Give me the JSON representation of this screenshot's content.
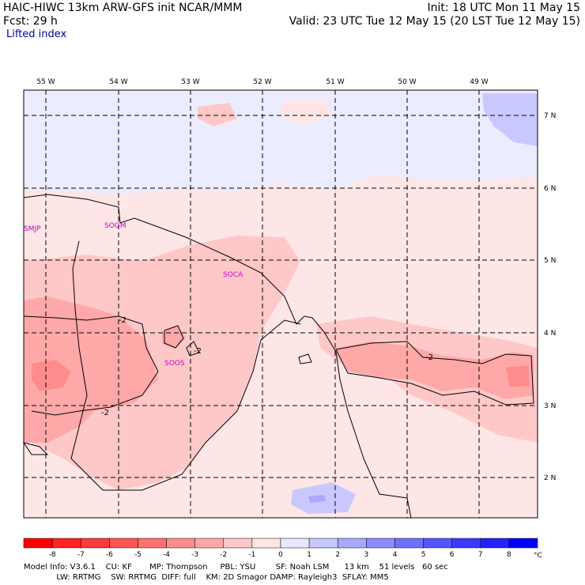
{
  "header": {
    "title_left": "HAIC-HIWC 13km ARW-GFS init    NCAR/MMM",
    "init": "Init: 18 UTC Mon 11 May 15",
    "fcst": "Fcst:    29 h",
    "valid": "Valid: 23 UTC Tue 12 May 15 (20 LST Tue 12 May 15)",
    "field": "Lifted index"
  },
  "map": {
    "lon_labels": [
      "55 W",
      "54 W",
      "53 W",
      "52 W",
      "51 W",
      "50 W",
      "49 W"
    ],
    "lat_labels": [
      "7 N",
      "6 N",
      "5 N",
      "4 N",
      "3 N",
      "2 N"
    ],
    "stations": [
      "SMJP",
      "SOGM",
      "SOCA",
      "SOOS"
    ],
    "contour_labels": [
      "-2",
      "-2",
      "-2",
      "-2"
    ]
  },
  "colorbar": {
    "ticks": [
      "-8",
      "-7",
      "-6",
      "-5",
      "-4",
      "-3",
      "-2",
      "-1",
      "0",
      "1",
      "2",
      "3",
      "4",
      "5",
      "6",
      "7",
      "8"
    ],
    "unit": "°C",
    "colors": [
      "#ff0000",
      "#ff2323",
      "#ff3a3a",
      "#ff5555",
      "#ff7070",
      "#ff8c8c",
      "#ffa8a8",
      "#ffc8c8",
      "#ffe6e6",
      "#e8e8ff",
      "#c8c8ff",
      "#a8a8ff",
      "#8c8cff",
      "#7070ff",
      "#5555ff",
      "#3a3aff",
      "#2323ff",
      "#0000ff"
    ]
  },
  "footer": {
    "line1": "Model Info: V3.6.1    CU: KF       MP: Thompson     PBL: YSU        SF: Noah LSM      13 km    51 levels   60 sec",
    "line2": "             LW: RRTMG    SW: RRTMG  DIFF: full    KM: 2D Smagor DAMP: Rayleigh3  SFLAY: MM5"
  }
}
